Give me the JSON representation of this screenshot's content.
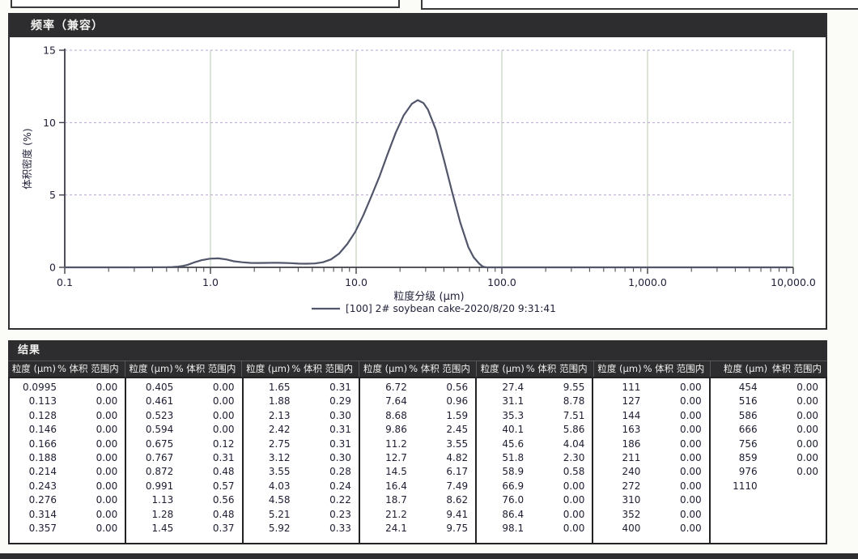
{
  "chart": {
    "panel_title": "频率（兼容）",
    "colors": {
      "header_bg": "#2d2d2f",
      "curve": "#51566b",
      "h_grid": "#b7a3d4",
      "v_grid": "#b8c8b2",
      "axis": "#3f3f4a",
      "label": "#22223a"
    }
  },
  "chart_data": {
    "type": "line",
    "title": "频率（兼容）",
    "xlabel": "粒度分级 (μm)",
    "ylabel": "体积密度 (%)",
    "x_scale": "log",
    "xlim": [
      0.1,
      10000
    ],
    "ylim": [
      0,
      15
    ],
    "y_ticks": [
      0,
      5,
      10,
      15
    ],
    "x_ticks": [
      {
        "v": 0.1,
        "label": "0.1"
      },
      {
        "v": 1,
        "label": "1.0"
      },
      {
        "v": 10,
        "label": "10.0"
      },
      {
        "v": 100,
        "label": "100.0"
      },
      {
        "v": 1000,
        "label": "1,000.0"
      },
      {
        "v": 10000,
        "label": "10,000.0"
      }
    ],
    "grid": {
      "horizontal_at": [
        5,
        10,
        15
      ],
      "vertical_at": [
        1,
        10,
        100,
        1000,
        10000
      ]
    },
    "legend_position": "bottom-center",
    "series": [
      {
        "name": "[100] 2# soybean cake-2020/8/20 9:31:41",
        "x": [
          0.1,
          0.3,
          0.5,
          0.55,
          0.6,
          0.65,
          0.7,
          0.767,
          0.872,
          0.991,
          1.13,
          1.28,
          1.45,
          1.65,
          1.88,
          2.13,
          2.42,
          2.75,
          3.12,
          3.55,
          4.03,
          4.58,
          5.21,
          5.92,
          6.72,
          7.64,
          8.68,
          9.86,
          11.2,
          12.7,
          14.5,
          16.4,
          18.7,
          21.2,
          24.1,
          26.5,
          29,
          31.1,
          35.3,
          40.1,
          45.6,
          51.8,
          58.9,
          64,
          70,
          74,
          78,
          100,
          300,
          1000,
          3000,
          9500
        ],
        "y": [
          0,
          0,
          0.01,
          0.02,
          0.05,
          0.1,
          0.18,
          0.33,
          0.5,
          0.6,
          0.62,
          0.55,
          0.42,
          0.35,
          0.31,
          0.3,
          0.31,
          0.32,
          0.31,
          0.29,
          0.26,
          0.25,
          0.27,
          0.35,
          0.55,
          0.95,
          1.6,
          2.45,
          3.6,
          4.9,
          6.3,
          7.8,
          9.3,
          10.5,
          11.3,
          11.55,
          11.35,
          10.9,
          9.5,
          7.4,
          5.2,
          3.1,
          1.4,
          0.7,
          0.25,
          0.05,
          0,
          0,
          0,
          0,
          0,
          0
        ]
      }
    ]
  },
  "results": {
    "title": "结果",
    "col_size_header": "粒度 (µm)",
    "col_pct_header": "% 体积 范围内",
    "col_pct_header_last": "体积 范围内",
    "groups": [
      {
        "rows": [
          [
            "0.0995",
            "0.00"
          ],
          [
            "0.113",
            "0.00"
          ],
          [
            "0.128",
            "0.00"
          ],
          [
            "0.146",
            "0.00"
          ],
          [
            "0.166",
            "0.00"
          ],
          [
            "0.188",
            "0.00"
          ],
          [
            "0.214",
            "0.00"
          ],
          [
            "0.243",
            "0.00"
          ],
          [
            "0.276",
            "0.00"
          ],
          [
            "0.314",
            "0.00"
          ],
          [
            "0.357",
            "0.00"
          ]
        ]
      },
      {
        "rows": [
          [
            "0.405",
            "0.00"
          ],
          [
            "0.461",
            "0.00"
          ],
          [
            "0.523",
            "0.00"
          ],
          [
            "0.594",
            "0.00"
          ],
          [
            "0.675",
            "0.12"
          ],
          [
            "0.767",
            "0.31"
          ],
          [
            "0.872",
            "0.48"
          ],
          [
            "0.991",
            "0.57"
          ],
          [
            "1.13",
            "0.56"
          ],
          [
            "1.28",
            "0.48"
          ],
          [
            "1.45",
            "0.37"
          ]
        ]
      },
      {
        "rows": [
          [
            "1.65",
            "0.31"
          ],
          [
            "1.88",
            "0.29"
          ],
          [
            "2.13",
            "0.30"
          ],
          [
            "2.42",
            "0.31"
          ],
          [
            "2.75",
            "0.31"
          ],
          [
            "3.12",
            "0.30"
          ],
          [
            "3.55",
            "0.28"
          ],
          [
            "4.03",
            "0.24"
          ],
          [
            "4.58",
            "0.22"
          ],
          [
            "5.21",
            "0.23"
          ],
          [
            "5.92",
            "0.33"
          ]
        ]
      },
      {
        "rows": [
          [
            "6.72",
            "0.56"
          ],
          [
            "7.64",
            "0.96"
          ],
          [
            "8.68",
            "1.59"
          ],
          [
            "9.86",
            "2.45"
          ],
          [
            "11.2",
            "3.55"
          ],
          [
            "12.7",
            "4.82"
          ],
          [
            "14.5",
            "6.17"
          ],
          [
            "16.4",
            "7.49"
          ],
          [
            "18.7",
            "8.62"
          ],
          [
            "21.2",
            "9.41"
          ],
          [
            "24.1",
            "9.75"
          ]
        ]
      },
      {
        "rows": [
          [
            "27.4",
            "9.55"
          ],
          [
            "31.1",
            "8.78"
          ],
          [
            "35.3",
            "7.51"
          ],
          [
            "40.1",
            "5.86"
          ],
          [
            "45.6",
            "4.04"
          ],
          [
            "51.8",
            "2.30"
          ],
          [
            "58.9",
            "0.58"
          ],
          [
            "66.9",
            "0.00"
          ],
          [
            "76.0",
            "0.00"
          ],
          [
            "86.4",
            "0.00"
          ],
          [
            "98.1",
            "0.00"
          ]
        ]
      },
      {
        "rows": [
          [
            "111",
            "0.00"
          ],
          [
            "127",
            "0.00"
          ],
          [
            "144",
            "0.00"
          ],
          [
            "163",
            "0.00"
          ],
          [
            "186",
            "0.00"
          ],
          [
            "211",
            "0.00"
          ],
          [
            "240",
            "0.00"
          ],
          [
            "272",
            "0.00"
          ],
          [
            "310",
            "0.00"
          ],
          [
            "352",
            "0.00"
          ],
          [
            "400",
            "0.00"
          ]
        ]
      },
      {
        "rows": [
          [
            "454",
            "0.00"
          ],
          [
            "516",
            "0.00"
          ],
          [
            "586",
            "0.00"
          ],
          [
            "666",
            "0.00"
          ],
          [
            "756",
            "0.00"
          ],
          [
            "859",
            "0.00"
          ],
          [
            "976",
            "0.00"
          ],
          [
            "1110",
            ""
          ]
        ]
      }
    ]
  }
}
